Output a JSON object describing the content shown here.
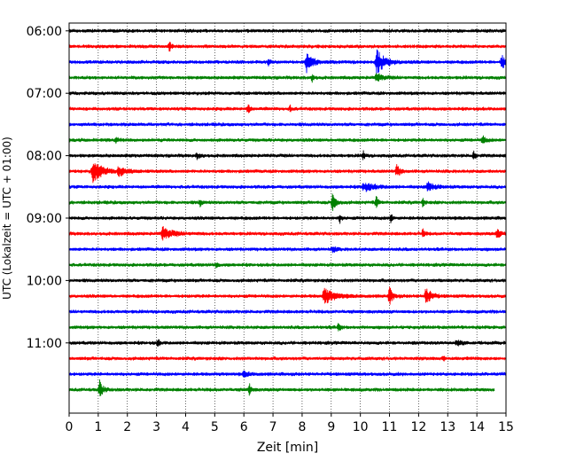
{
  "chart_data": {
    "type": "line",
    "title": "",
    "xlabel": "Zeit  [min]",
    "ylabel": "UTC (Lokalzeit = UTC + 01:00)",
    "xlim": [
      0,
      15
    ],
    "x_ticks": [
      0,
      1,
      2,
      3,
      4,
      5,
      6,
      7,
      8,
      9,
      10,
      11,
      12,
      13,
      14,
      15
    ],
    "x_tick_labels": [
      "0",
      "1",
      "2",
      "3",
      "4",
      "5",
      "6",
      "7",
      "8",
      "9",
      "10",
      "11",
      "12",
      "13",
      "14",
      "15"
    ],
    "ylim": [
      "05:52:30",
      "12:07:30"
    ],
    "y_ticks": [
      "06:00",
      "07:00",
      "08:00",
      "09:00",
      "10:00",
      "11:00"
    ],
    "grid": {
      "x": true,
      "y": false,
      "style": "dotted"
    },
    "trace_interval_minutes": 15,
    "trace_colors": [
      "#000000",
      "#ff0000",
      "#0000ff",
      "#008000"
    ],
    "series": [
      {
        "start": "06:00",
        "color": "#000000",
        "end_minute": 15.0,
        "events": []
      },
      {
        "start": "06:15",
        "color": "#ff0000",
        "end_minute": 15.0,
        "events": [
          {
            "t": 3.45,
            "amp": 0.6,
            "width": 0.05
          }
        ]
      },
      {
        "start": "06:30",
        "color": "#0000ff",
        "end_minute": 15.0,
        "events": [
          {
            "t": 6.85,
            "amp": 0.45,
            "width": 0.05
          },
          {
            "t": 8.15,
            "amp": 1.2,
            "width": 0.2
          },
          {
            "t": 10.55,
            "amp": 1.6,
            "width": 0.25
          },
          {
            "t": 14.85,
            "amp": 0.9,
            "width": 0.15
          }
        ]
      },
      {
        "start": "06:45",
        "color": "#008000",
        "end_minute": 15.0,
        "events": [
          {
            "t": 8.35,
            "amp": 0.55,
            "width": 0.05
          },
          {
            "t": 10.55,
            "amp": 0.5,
            "width": 0.2
          }
        ]
      },
      {
        "start": "07:00",
        "color": "#000000",
        "end_minute": 15.0,
        "events": []
      },
      {
        "start": "07:15",
        "color": "#ff0000",
        "end_minute": 15.0,
        "events": [
          {
            "t": 6.15,
            "amp": 0.7,
            "width": 0.05
          },
          {
            "t": 7.6,
            "amp": 0.4,
            "width": 0.05
          }
        ]
      },
      {
        "start": "07:30",
        "color": "#0000ff",
        "end_minute": 15.0,
        "events": []
      },
      {
        "start": "07:45",
        "color": "#008000",
        "end_minute": 15.0,
        "events": [
          {
            "t": 1.6,
            "amp": 0.45,
            "width": 0.1
          },
          {
            "t": 14.2,
            "amp": 0.5,
            "width": 0.1
          }
        ]
      },
      {
        "start": "08:00",
        "color": "#000000",
        "end_minute": 15.0,
        "events": [
          {
            "t": 4.4,
            "amp": 0.4,
            "width": 0.1
          },
          {
            "t": 10.1,
            "amp": 0.55,
            "width": 0.05
          },
          {
            "t": 13.9,
            "amp": 0.6,
            "width": 0.05
          }
        ]
      },
      {
        "start": "08:15",
        "color": "#ff0000",
        "end_minute": 15.0,
        "events": [
          {
            "t": 0.8,
            "amp": 1.5,
            "width": 0.3
          },
          {
            "t": 1.7,
            "amp": 0.6,
            "width": 0.2
          },
          {
            "t": 11.25,
            "amp": 0.8,
            "width": 0.1
          }
        ]
      },
      {
        "start": "08:30",
        "color": "#0000ff",
        "end_minute": 15.0,
        "events": [
          {
            "t": 10.1,
            "amp": 0.6,
            "width": 0.3
          },
          {
            "t": 12.3,
            "amp": 0.6,
            "width": 0.2
          }
        ]
      },
      {
        "start": "08:45",
        "color": "#008000",
        "end_minute": 15.0,
        "events": [
          {
            "t": 4.5,
            "amp": 0.45,
            "width": 0.05
          },
          {
            "t": 9.05,
            "amp": 1.3,
            "width": 0.1
          },
          {
            "t": 10.55,
            "amp": 0.9,
            "width": 0.05
          },
          {
            "t": 12.15,
            "amp": 0.5,
            "width": 0.05
          }
        ]
      },
      {
        "start": "09:00",
        "color": "#000000",
        "end_minute": 15.0,
        "events": [
          {
            "t": 9.3,
            "amp": 0.5,
            "width": 0.05
          },
          {
            "t": 11.05,
            "amp": 0.55,
            "width": 0.05
          }
        ]
      },
      {
        "start": "09:15",
        "color": "#ff0000",
        "end_minute": 15.0,
        "events": [
          {
            "t": 3.2,
            "amp": 0.8,
            "width": 0.3
          },
          {
            "t": 12.15,
            "amp": 0.6,
            "width": 0.05
          },
          {
            "t": 14.7,
            "amp": 0.6,
            "width": 0.1
          }
        ]
      },
      {
        "start": "09:30",
        "color": "#0000ff",
        "end_minute": 15.0,
        "events": [
          {
            "t": 9.05,
            "amp": 0.4,
            "width": 0.1
          }
        ]
      },
      {
        "start": "09:45",
        "color": "#008000",
        "end_minute": 15.0,
        "events": [
          {
            "t": 5.05,
            "amp": 0.35,
            "width": 0.05
          }
        ]
      },
      {
        "start": "10:00",
        "color": "#000000",
        "end_minute": 15.0,
        "events": []
      },
      {
        "start": "10:15",
        "color": "#ff0000",
        "end_minute": 15.0,
        "events": [
          {
            "t": 8.75,
            "amp": 1.1,
            "width": 0.3
          },
          {
            "t": 11.0,
            "amp": 1.1,
            "width": 0.1
          },
          {
            "t": 12.25,
            "amp": 1.2,
            "width": 0.15
          }
        ]
      },
      {
        "start": "10:30",
        "color": "#0000ff",
        "end_minute": 15.0,
        "events": []
      },
      {
        "start": "10:45",
        "color": "#008000",
        "end_minute": 15.0,
        "events": [
          {
            "t": 9.25,
            "amp": 0.6,
            "width": 0.05
          }
        ]
      },
      {
        "start": "11:00",
        "color": "#000000",
        "end_minute": 15.0,
        "events": [
          {
            "t": 3.05,
            "amp": 0.45,
            "width": 0.05
          },
          {
            "t": 13.3,
            "amp": 0.3,
            "width": 0.2
          }
        ]
      },
      {
        "start": "11:15",
        "color": "#ff0000",
        "end_minute": 15.0,
        "events": [
          {
            "t": 12.85,
            "amp": 0.35,
            "width": 0.05
          }
        ]
      },
      {
        "start": "11:30",
        "color": "#0000ff",
        "end_minute": 15.0,
        "events": [
          {
            "t": 6.0,
            "amp": 0.35,
            "width": 0.15
          }
        ]
      },
      {
        "start": "11:45",
        "color": "#008000",
        "end_minute": 14.6,
        "events": [
          {
            "t": 1.05,
            "amp": 1.1,
            "width": 0.1
          },
          {
            "t": 6.2,
            "amp": 0.8,
            "width": 0.05
          }
        ]
      }
    ]
  }
}
